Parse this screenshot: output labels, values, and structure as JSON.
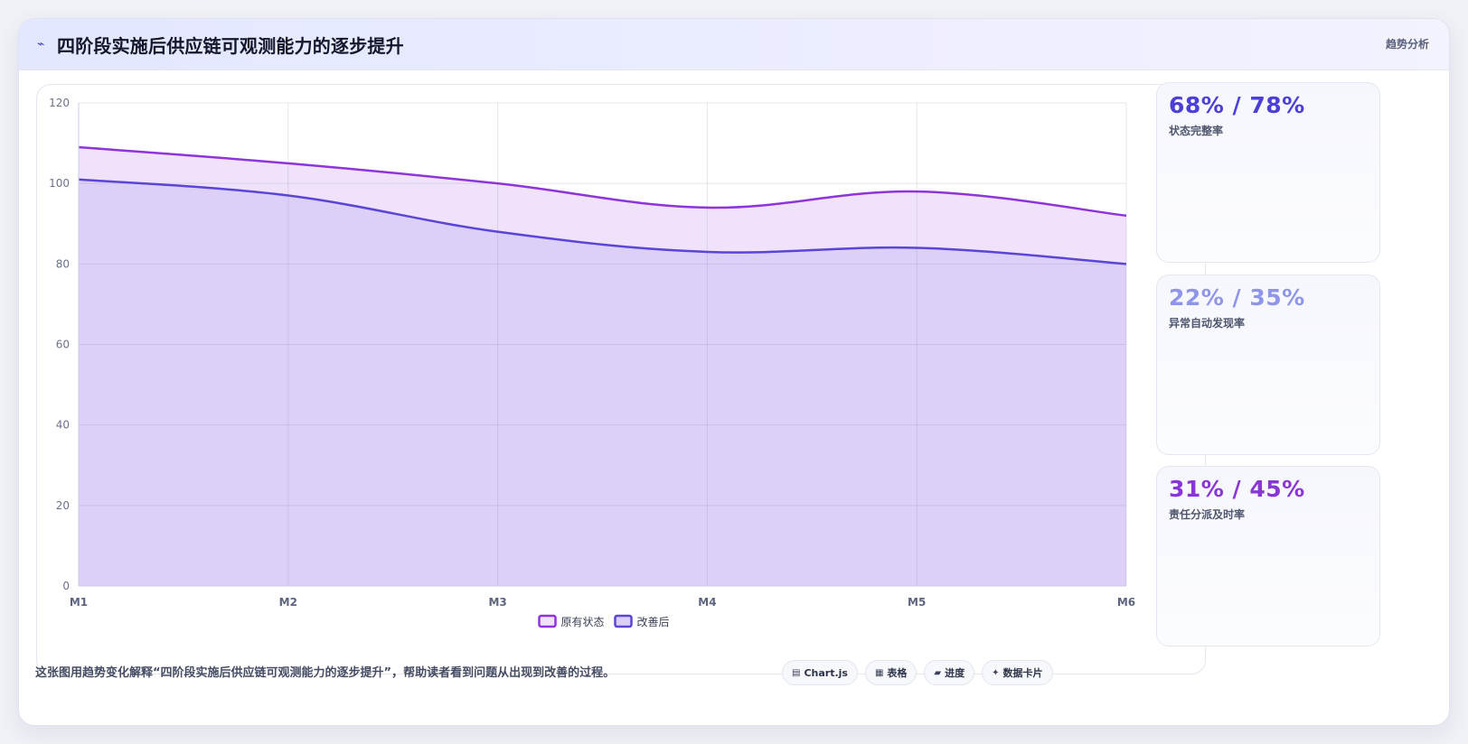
{
  "header": {
    "icon": "line-trend-icon",
    "icon_glyph": "⌁",
    "title": "四阶段实施后供应链可观测能力的逐步提升",
    "tag": "趋势分析"
  },
  "colors": {
    "original_line": "#8e34d9",
    "original_fill": "#efe2fa",
    "improved_line": "#5a45d6",
    "improved_fill": "#dccff8",
    "stat1": "#4b3fd8",
    "stat2": "#8e95ea",
    "stat3": "#8a36d6"
  },
  "chart_data": {
    "type": "area",
    "x": [
      "M1",
      "M2",
      "M3",
      "M4",
      "M5",
      "M6"
    ],
    "ylim": [
      0,
      120
    ],
    "yticks": [
      0,
      20,
      40,
      60,
      80,
      100,
      120
    ],
    "grid": true,
    "legend_position": "bottom",
    "series": [
      {
        "name": "原有状态",
        "values": [
          109,
          105,
          100,
          94,
          98,
          92
        ]
      },
      {
        "name": "改善后",
        "values": [
          101,
          97,
          88,
          83,
          84,
          80
        ]
      }
    ]
  },
  "stats": [
    {
      "value": "68% / 78%",
      "label": "状态完整率"
    },
    {
      "value": "22% / 35%",
      "label": "异常自动发现率"
    },
    {
      "value": "31% / 45%",
      "label": "责任分派及时率"
    }
  ],
  "caption": "这张图用趋势变化解释“四阶段实施后供应链可观测能力的逐步提升”，帮助读者看到问题从出现到改善的过程。",
  "badges": [
    {
      "icon": "chart-icon",
      "glyph": "▤",
      "label": "Chart.js"
    },
    {
      "icon": "table-icon",
      "glyph": "▦",
      "label": "表格"
    },
    {
      "icon": "progress-icon",
      "glyph": "▰",
      "label": "进度"
    },
    {
      "icon": "sparkle-icon",
      "glyph": "✦",
      "label": "数据卡片"
    }
  ]
}
